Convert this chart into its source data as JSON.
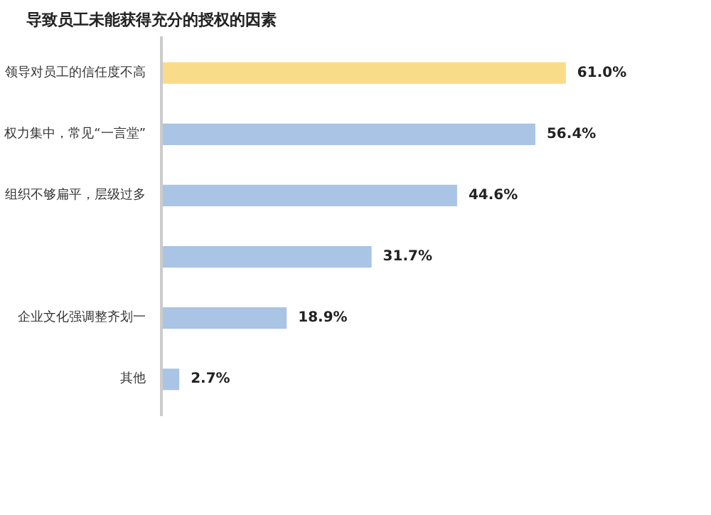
{
  "chart_data": {
    "type": "bar",
    "orientation": "horizontal",
    "title": "导致员工未能获得充分的授权的因素",
    "categories": [
      "领导对员工的信任度不高",
      "权力集中，常见“一言堂”",
      "组织不够扁平，层级过多",
      null,
      "企业文化强调整齐划一",
      "其他"
    ],
    "values": [
      61.0,
      56.4,
      44.6,
      31.7,
      18.9,
      2.7
    ],
    "colors": [
      "#f9dc8a",
      "#a9c4e4",
      "#a9c4e4",
      "#a9c4e4",
      "#a9c4e4",
      "#a9c4e4"
    ],
    "value_labels": [
      "61.0%",
      "56.4%",
      "44.6%",
      "31.7%",
      "18.9%",
      "2.7%"
    ],
    "grid": false
  }
}
